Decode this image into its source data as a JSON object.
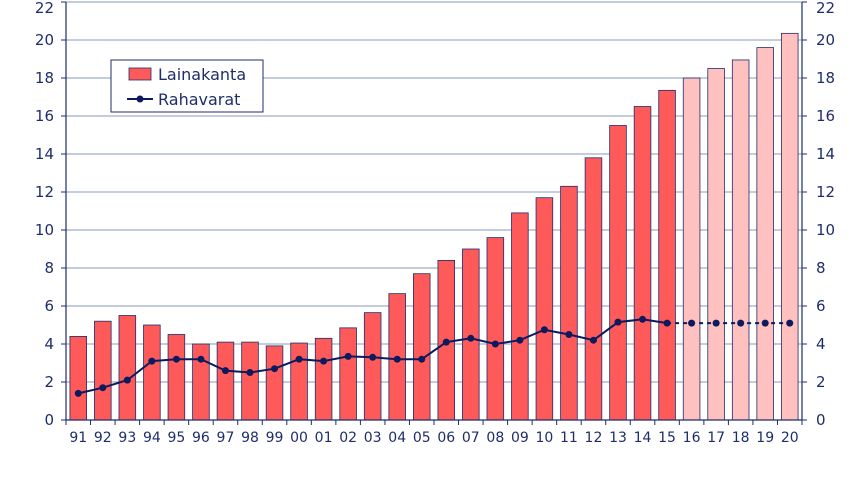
{
  "chart_data": {
    "type": "bar",
    "categories": [
      "91",
      "92",
      "93",
      "94",
      "95",
      "96",
      "97",
      "98",
      "99",
      "00",
      "01",
      "02",
      "03",
      "04",
      "05",
      "06",
      "07",
      "08",
      "09",
      "10",
      "11",
      "12",
      "13",
      "14",
      "15",
      "16",
      "17",
      "18",
      "19",
      "20"
    ],
    "series": [
      {
        "name": "Lainakanta",
        "type": "bar",
        "values": [
          4.4,
          5.2,
          5.5,
          5.0,
          4.5,
          4.0,
          4.1,
          4.1,
          3.9,
          4.05,
          4.3,
          4.85,
          5.65,
          6.65,
          7.7,
          8.4,
          9.0,
          9.6,
          10.9,
          11.7,
          12.3,
          13.8,
          15.5,
          16.5,
          17.35,
          18.0,
          18.5,
          18.95,
          19.6,
          20.35
        ],
        "forecast_from_index": 25
      },
      {
        "name": "Rahavarat",
        "type": "line",
        "values": [
          1.4,
          1.7,
          2.1,
          3.1,
          3.2,
          3.2,
          2.6,
          2.5,
          2.7,
          3.2,
          3.1,
          3.35,
          3.3,
          3.2,
          3.2,
          4.1,
          4.3,
          4.0,
          4.2,
          4.75,
          4.5,
          4.2,
          5.15,
          5.3,
          5.1,
          5.1,
          5.1,
          5.1,
          5.1,
          5.1
        ],
        "forecast_from_index": 24
      }
    ],
    "ylim": [
      0,
      22
    ],
    "yticks": [
      "0",
      "2",
      "4",
      "6",
      "8",
      "10",
      "12",
      "14",
      "16",
      "18",
      "20",
      "22"
    ],
    "grid": true,
    "legend": "top-left",
    "colors": {
      "bar_actual": "#ff5a5a",
      "bar_forecast": "#ffc0c0",
      "bar_edge": "#1f2d6b",
      "line": "#0d1b5e",
      "grid": "#8a9bb8",
      "axis": "#1f2d6b"
    }
  }
}
